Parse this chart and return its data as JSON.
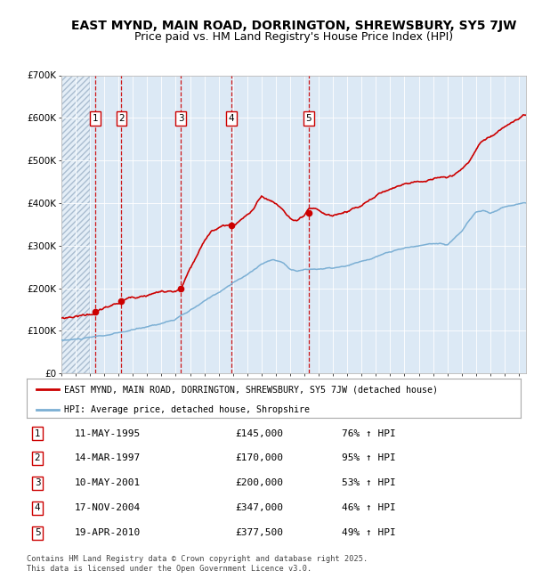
{
  "title": "EAST MYND, MAIN ROAD, DORRINGTON, SHREWSBURY, SY5 7JW",
  "subtitle": "Price paid vs. HM Land Registry's House Price Index (HPI)",
  "ylim": [
    0,
    700000
  ],
  "yticks": [
    0,
    100000,
    200000,
    300000,
    400000,
    500000,
    600000,
    700000
  ],
  "ytick_labels": [
    "£0",
    "£100K",
    "£200K",
    "£300K",
    "£400K",
    "£500K",
    "£600K",
    "£700K"
  ],
  "xlim_start": 1993.0,
  "xlim_end": 2025.5,
  "bg_color": "#dce9f5",
  "hatch_color": "#b8cfe0",
  "grid_color": "#ffffff",
  "sale_dates": [
    1995.36,
    1997.2,
    2001.36,
    2004.88,
    2010.3
  ],
  "sale_prices": [
    145000,
    170000,
    200000,
    347000,
    377500
  ],
  "sale_labels": [
    "1",
    "2",
    "3",
    "4",
    "5"
  ],
  "sale_pct_hpi": [
    "76% ↑ HPI",
    "95% ↑ HPI",
    "53% ↑ HPI",
    "46% ↑ HPI",
    "49% ↑ HPI"
  ],
  "sale_date_strs": [
    "11-MAY-1995",
    "14-MAR-1997",
    "10-MAY-2001",
    "17-NOV-2004",
    "19-APR-2010"
  ],
  "red_dashed_x": [
    1995.36,
    1997.2,
    2001.36,
    2004.88,
    2010.3
  ],
  "house_line_color": "#cc0000",
  "hpi_line_color": "#7bafd4",
  "marker_color": "#cc0000",
  "legend_house_label": "EAST MYND, MAIN ROAD, DORRINGTON, SHREWSBURY, SY5 7JW (detached house)",
  "legend_hpi_label": "HPI: Average price, detached house, Shropshire",
  "footer_text": "Contains HM Land Registry data © Crown copyright and database right 2025.\nThis data is licensed under the Open Government Licence v3.0.",
  "title_fontsize": 10,
  "subtitle_fontsize": 9,
  "axis_fontsize": 7.5,
  "hatch_end": 1995.0
}
